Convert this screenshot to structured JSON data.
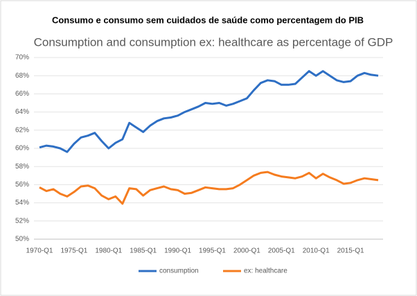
{
  "heading": "Consumo e consumo sem cuidados de saúde como percentagem do PIB",
  "chart_data": {
    "type": "line",
    "title": "Consumption and consumption ex: healthcare as  percentage of GDP",
    "categories": [
      "1970-Q1",
      null,
      null,
      null,
      null,
      "1975-Q1",
      null,
      null,
      null,
      null,
      "1980-Q1",
      null,
      null,
      null,
      null,
      "1985-Q1",
      null,
      null,
      null,
      null,
      "1990-Q1",
      null,
      null,
      null,
      null,
      "1995-Q1",
      null,
      null,
      null,
      null,
      "2000-Q1",
      null,
      null,
      null,
      null,
      "2005-Q1",
      null,
      null,
      null,
      null,
      "2010-Q1",
      null,
      null,
      null,
      null,
      "2015-Q1",
      null,
      null,
      null,
      null
    ],
    "series": [
      {
        "name": "consumption",
        "color": "#2e6fc4",
        "values": [
          60.1,
          60.3,
          60.2,
          60.0,
          59.6,
          60.5,
          61.2,
          61.4,
          61.7,
          60.8,
          60.0,
          60.6,
          61.0,
          62.8,
          62.3,
          61.8,
          62.5,
          63.0,
          63.3,
          63.4,
          63.6,
          64.0,
          64.3,
          64.6,
          65.0,
          64.9,
          65.0,
          64.7,
          64.9,
          65.2,
          65.5,
          66.4,
          67.2,
          67.5,
          67.4,
          67.0,
          67.0,
          67.1,
          67.8,
          68.5,
          68.0,
          68.5,
          68.0,
          67.5,
          67.3,
          67.4,
          68.0,
          68.3,
          68.1,
          68.0
        ]
      },
      {
        "name": "ex: healthcare",
        "color": "#f57c1f",
        "values": [
          55.7,
          55.3,
          55.5,
          55.0,
          54.7,
          55.2,
          55.8,
          55.9,
          55.6,
          54.8,
          54.4,
          54.7,
          53.9,
          55.6,
          55.5,
          54.8,
          55.4,
          55.6,
          55.8,
          55.5,
          55.4,
          55.0,
          55.1,
          55.4,
          55.7,
          55.6,
          55.5,
          55.5,
          55.6,
          56.0,
          56.5,
          57.0,
          57.3,
          57.4,
          57.1,
          56.9,
          56.8,
          56.7,
          56.9,
          57.3,
          56.7,
          57.2,
          56.8,
          56.5,
          56.1,
          56.2,
          56.5,
          56.7,
          56.6,
          56.5
        ]
      }
    ],
    "ylim": [
      50,
      70
    ],
    "yticks": [
      {
        "value": 50,
        "label": "50%"
      },
      {
        "value": 52,
        "label": "52%"
      },
      {
        "value": 54,
        "label": "54%"
      },
      {
        "value": 56,
        "label": "56%"
      },
      {
        "value": 58,
        "label": "58%"
      },
      {
        "value": 60,
        "label": "60%"
      },
      {
        "value": 62,
        "label": "62%"
      },
      {
        "value": 64,
        "label": "64%"
      },
      {
        "value": 66,
        "label": "66%"
      },
      {
        "value": 68,
        "label": "68%"
      },
      {
        "value": 70,
        "label": "70%"
      }
    ],
    "grid": true,
    "legend": "bottom"
  }
}
